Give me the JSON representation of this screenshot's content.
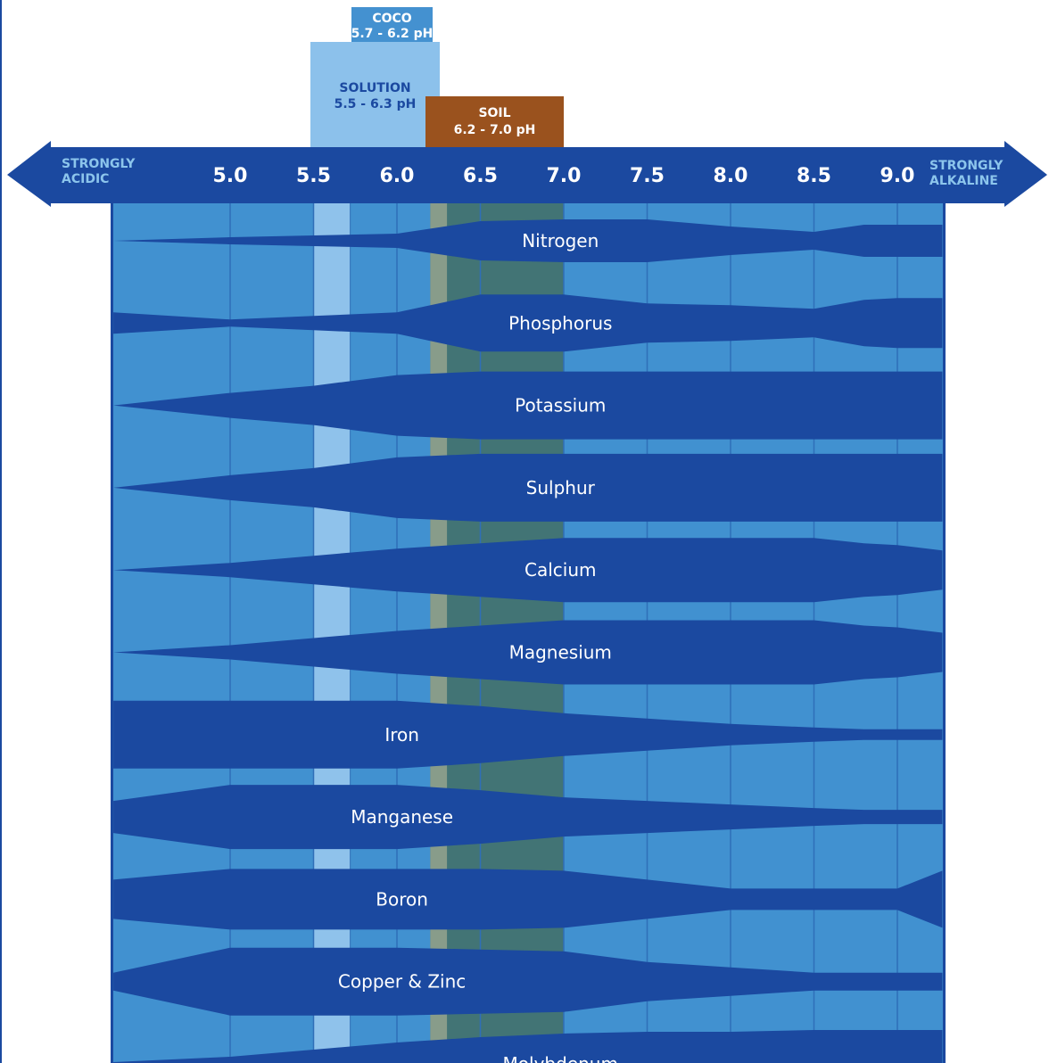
{
  "chart_data": {
    "type": "area",
    "title": "",
    "axis": {
      "left_label": [
        "STRONGLY",
        "ACIDIC"
      ],
      "right_label": [
        "STRONGLY",
        "ALKALINE"
      ],
      "ticks": [
        "5.0",
        "5.5",
        "6.0",
        "6.5",
        "7.0",
        "7.5",
        "8.0",
        "8.5",
        "9.0"
      ],
      "tick_values": [
        5.0,
        5.5,
        6.0,
        6.5,
        7.0,
        7.5,
        8.0,
        8.5,
        9.0
      ],
      "range": [
        4.3,
        9.3
      ]
    },
    "grow_ranges": [
      {
        "name": "COCO",
        "range_label": "5.7 - 6.2 pH",
        "min": 5.7,
        "max": 6.2,
        "color": "#4491d0"
      },
      {
        "name": "SOLUTION",
        "range_label": "5.5 - 6.3 pH",
        "min": 5.5,
        "max": 6.3,
        "color": "#8cc1eb"
      },
      {
        "name": "SOIL",
        "range_label": "6.2 - 7.0 pH",
        "min": 6.2,
        "max": 7.0,
        "color": "#9a521e"
      }
    ],
    "ph_points": [
      4.3,
      5.0,
      5.5,
      6.0,
      6.5,
      7.0,
      7.5,
      8.0,
      8.5,
      8.8,
      9.0,
      9.27
    ],
    "series": [
      {
        "name": "Nitrogen",
        "label_ph": 6.98,
        "availability": [
          0.0,
          0.1,
          0.15,
          0.2,
          0.55,
          0.6,
          0.6,
          0.4,
          0.25,
          0.45,
          0.45,
          0.45
        ]
      },
      {
        "name": "Phosphorus",
        "label_ph": 6.98,
        "availability": [
          0.3,
          0.1,
          0.2,
          0.3,
          0.8,
          0.8,
          0.55,
          0.5,
          0.4,
          0.65,
          0.7,
          0.7
        ]
      },
      {
        "name": "Potassium",
        "label_ph": 6.98,
        "availability": [
          0.0,
          0.35,
          0.55,
          0.85,
          0.95,
          0.95,
          0.95,
          0.95,
          0.95,
          0.95,
          0.95,
          0.95
        ]
      },
      {
        "name": "Sulphur",
        "label_ph": 6.98,
        "availability": [
          0.0,
          0.35,
          0.55,
          0.85,
          0.95,
          0.95,
          0.95,
          0.95,
          0.95,
          0.95,
          0.95,
          0.95
        ]
      },
      {
        "name": "Calcium",
        "label_ph": 6.98,
        "availability": [
          0.0,
          0.2,
          0.4,
          0.6,
          0.75,
          0.9,
          0.9,
          0.9,
          0.9,
          0.75,
          0.7,
          0.55
        ]
      },
      {
        "name": "Magnesium",
        "label_ph": 6.98,
        "availability": [
          0.0,
          0.2,
          0.4,
          0.6,
          0.75,
          0.9,
          0.9,
          0.9,
          0.9,
          0.75,
          0.7,
          0.55
        ]
      },
      {
        "name": "Iron",
        "label_ph": 6.03,
        "availability": [
          0.95,
          0.95,
          0.95,
          0.95,
          0.8,
          0.6,
          0.45,
          0.3,
          0.2,
          0.15,
          0.15,
          0.15
        ]
      },
      {
        "name": "Manganese",
        "label_ph": 6.03,
        "availability": [
          0.45,
          0.9,
          0.9,
          0.9,
          0.75,
          0.55,
          0.45,
          0.35,
          0.25,
          0.2,
          0.2,
          0.2
        ]
      },
      {
        "name": "Boron",
        "label_ph": 6.03,
        "availability": [
          0.55,
          0.85,
          0.85,
          0.85,
          0.85,
          0.8,
          0.55,
          0.3,
          0.3,
          0.3,
          0.3,
          0.8
        ]
      },
      {
        "name": "Copper & Zinc",
        "label_ph": 6.03,
        "availability": [
          0.25,
          0.95,
          0.95,
          0.95,
          0.9,
          0.85,
          0.55,
          0.4,
          0.25,
          0.25,
          0.25,
          0.25
        ]
      },
      {
        "name": "Molybdenum",
        "label_ph": 6.98,
        "availability": [
          0.05,
          0.2,
          0.4,
          0.6,
          0.75,
          0.85,
          0.9,
          0.9,
          0.95,
          0.95,
          0.95,
          0.95
        ]
      }
    ],
    "colors": {
      "band_dark": "#1b49a0",
      "band_light": "#4191d0",
      "solution_stripe": "#8fc2eb",
      "coco_stripe": "#889c8a",
      "soil_stripe": "#427475",
      "axis_bar": "#1b49a0",
      "end_label": "#8cc5ec",
      "frame": "#1b49a0"
    }
  }
}
